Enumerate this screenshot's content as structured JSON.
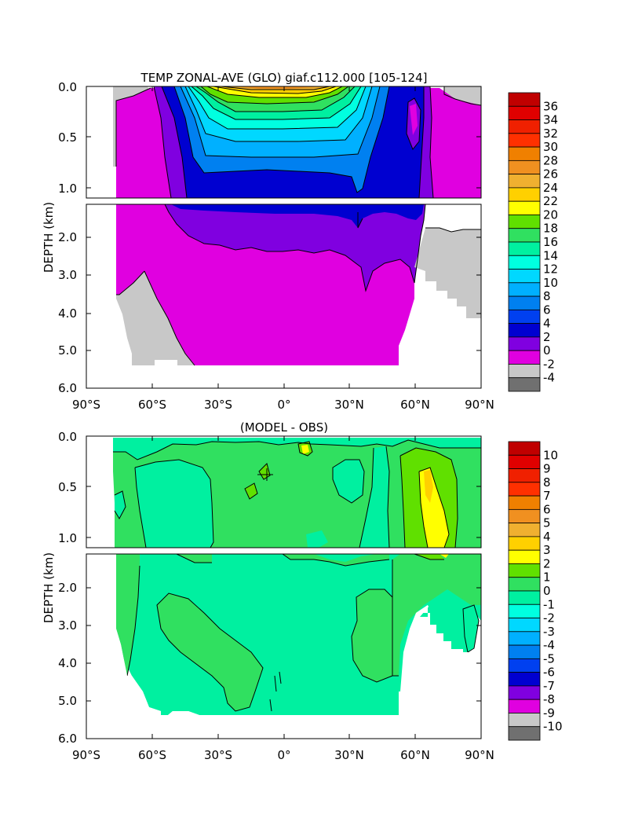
{
  "chart_data": [
    {
      "type": "heatmap",
      "title": "TEMP ZONAL-AVE (GLO) giaf.c112.000 [105-124]",
      "ylabel": "DEPTH (km)",
      "xlabel": "",
      "xlim": [
        -90,
        90
      ],
      "x_ticks": [
        "90°S",
        "60°S",
        "30°S",
        "0°",
        "30°N",
        "60°N",
        "90°N"
      ],
      "y_ticks_upper": [
        "0.0",
        "0.5",
        "1.0"
      ],
      "y_ticks_lower": [
        "2.0",
        "3.0",
        "4.0",
        "5.0",
        "6.0"
      ],
      "upper_depth_range_km": [
        0.0,
        1.1
      ],
      "lower_depth_range_km": [
        1.1,
        6.0
      ],
      "colorbar_levels": [
        "36",
        "34",
        "32",
        "30",
        "28",
        "26",
        "24",
        "22",
        "20",
        "18",
        "16",
        "14",
        "12",
        "10",
        "8",
        "6",
        "4",
        "2",
        "0",
        "-2",
        "-4"
      ],
      "colorbar_colors": [
        "#c00000",
        "#e00000",
        "#f02000",
        "#ff3000",
        "#f08000",
        "#f09020",
        "#f0b030",
        "#ffd000",
        "#ffff00",
        "#60e000",
        "#30e060",
        "#00f0a0",
        "#00ffe0",
        "#00d8ff",
        "#00b0ff",
        "#0080f0",
        "#0040f0",
        "#0000d0",
        "#8000e0",
        "#e000e0",
        "#c8c8c8",
        "#707070"
      ],
      "profiles": {
        "lat": [
          -78,
          -70,
          -60,
          -50,
          -40,
          -30,
          -20,
          -10,
          0,
          10,
          20,
          30,
          35,
          40,
          50,
          55,
          60,
          65,
          70,
          80,
          90
        ],
        "d4_km": [
          0,
          0,
          0,
          0.3,
          0.82,
          0.95,
          1.0,
          1.02,
          1.04,
          1.05,
          1.05,
          1.05,
          1.3,
          1.1,
          1.05,
          1.1,
          1.3,
          1.3,
          0,
          0,
          0
        ],
        "d2_km": [
          0,
          0,
          0.1,
          1.0,
          1.45,
          1.85,
          2.05,
          2.15,
          2.2,
          2.22,
          2.25,
          2.2,
          2.5,
          2.2,
          2.2,
          1.9,
          1.4,
          0,
          0,
          0,
          0
        ],
        "bottom_km": [
          3.5,
          3.2,
          3.0,
          4.0,
          5.35,
          5.35,
          5.35,
          5.35,
          5.35,
          5.35,
          5.35,
          5.35,
          5.35,
          5.35,
          5.35,
          5.1,
          4.0,
          3.0,
          3.0,
          3.3,
          4.1
        ]
      }
    },
    {
      "type": "heatmap",
      "title": "(MODEL - OBS)",
      "ylabel": "DEPTH (km)",
      "xlabel": "",
      "xlim": [
        -90,
        90
      ],
      "x_ticks": [
        "90°S",
        "60°S",
        "30°S",
        "0°",
        "30°N",
        "60°N",
        "90°N"
      ],
      "y_ticks_upper": [
        "0.0",
        "0.5",
        "1.0"
      ],
      "y_ticks_lower": [
        "2.0",
        "3.0",
        "4.0",
        "5.0",
        "6.0"
      ],
      "upper_depth_range_km": [
        0.0,
        1.1
      ],
      "lower_depth_range_km": [
        1.1,
        6.0
      ],
      "colorbar_levels": [
        "10",
        "9",
        "8",
        "7",
        "6",
        "5",
        "4",
        "3",
        "2",
        "1",
        "0",
        "-1",
        "-2",
        "-3",
        "-4",
        "-5",
        "-6",
        "-7",
        "-8",
        "-9",
        "-10"
      ],
      "colorbar_colors": [
        "#c00000",
        "#e00000",
        "#f02000",
        "#ff3000",
        "#f08000",
        "#f09020",
        "#f0b030",
        "#ffd000",
        "#ffff00",
        "#60e000",
        "#30e060",
        "#00f0a0",
        "#00ffe0",
        "#00d8ff",
        "#00b0ff",
        "#0080f0",
        "#0040f0",
        "#0000d0",
        "#8000e0",
        "#e000e0",
        "#c8c8c8",
        "#707070"
      ]
    }
  ]
}
